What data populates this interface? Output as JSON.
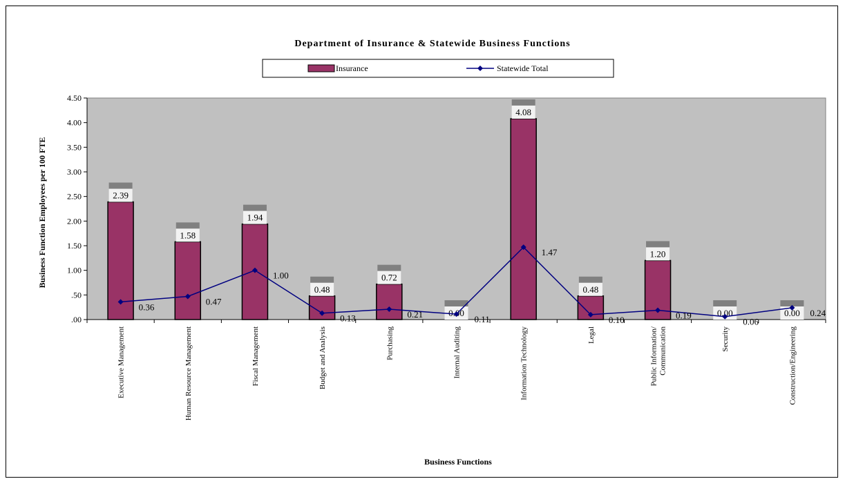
{
  "chart_data": {
    "type": "bar",
    "title": "Department of Insurance & Statewide Business Functions",
    "xlabel": "Business Functions",
    "ylabel": "Business Function Employees per 100 FTE",
    "ylim": [
      0,
      4.5
    ],
    "yticks": [
      ".00",
      ".50",
      "1.00",
      "1.50",
      "2.00",
      "2.50",
      "3.00",
      "3.50",
      "4.00",
      "4.50"
    ],
    "categories": [
      "Executive Management",
      "Human Resource Management",
      "Fiscal Management",
      "Budget and Analysis",
      "Purchasing",
      "Internal Auditing",
      "Information Technology",
      "Legal",
      "Public Information/\nCommunication",
      "Security",
      "Construction/Engineering"
    ],
    "series": [
      {
        "name": "Insurance",
        "type": "bar",
        "color": "#993366",
        "values": [
          2.39,
          1.58,
          1.94,
          0.48,
          0.72,
          0.0,
          4.08,
          0.48,
          1.2,
          0.0,
          0.0
        ],
        "labels": [
          "2.39",
          "1.58",
          "1.94",
          "0.48",
          "0.72",
          "0.00",
          "4.08",
          "0.48",
          "1.20",
          "0.00",
          "0.00"
        ]
      },
      {
        "name": "Statewide Total",
        "type": "line",
        "color": "#000080",
        "values": [
          0.36,
          0.47,
          1.0,
          0.13,
          0.21,
          0.11,
          1.47,
          0.1,
          0.19,
          0.06,
          0.24
        ],
        "labels": [
          "0.36",
          "0.47",
          "1.00",
          "0.13",
          "0.21",
          "0.11",
          "1.47",
          "0.10",
          "0.19",
          "0.06",
          "0.24"
        ]
      }
    ],
    "legend_position": "top-center",
    "plot_background": "#c0c0c0",
    "grid": false
  }
}
